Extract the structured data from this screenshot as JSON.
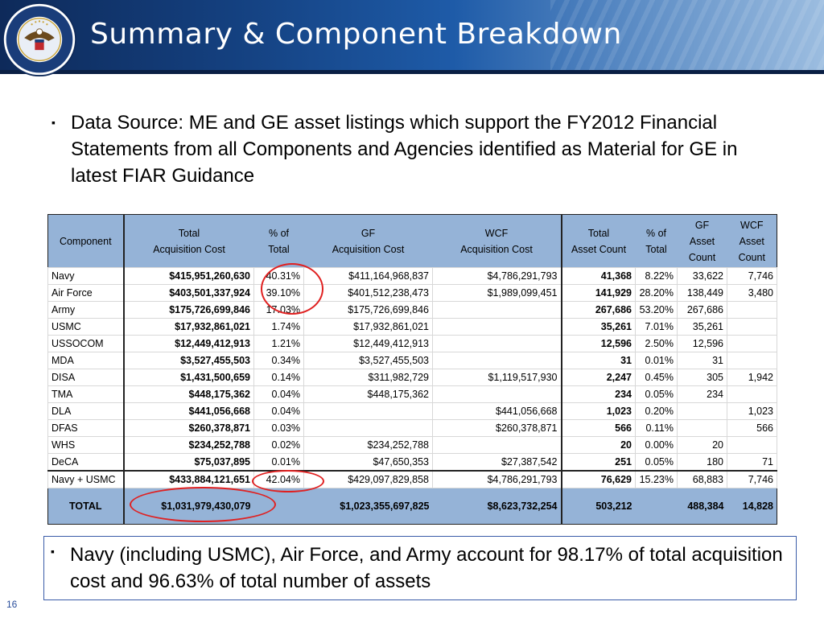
{
  "header": {
    "title": "Summary & Component Breakdown",
    "seal_text": "DEPARTMENT OF DEFENSE · UNITED STATES OF AMERICA"
  },
  "bullets": {
    "mark": "▪",
    "main": "Data Source:  ME and GE asset listings which support the FY2012 Financial Statements from all Components and Agencies identified as Material for GE in latest FIAR Guidance",
    "note": "Navy (including USMC), Air Force, and Army account for 98.17% of total acquisition cost and 96.63% of total number of assets"
  },
  "table": {
    "headers": [
      [
        "Component"
      ],
      [
        "Total",
        "Acquisition Cost"
      ],
      [
        "% of",
        "Total"
      ],
      [
        "GF",
        "Acquisition Cost"
      ],
      [
        "WCF",
        "Acquisition Cost"
      ],
      [
        "Total",
        "Asset Count"
      ],
      [
        "% of",
        "Total"
      ],
      [
        "GF",
        "Asset",
        "Count"
      ],
      [
        "WCF",
        "Asset",
        "Count"
      ]
    ],
    "rows": [
      [
        "Navy",
        "$415,951,260,630",
        "40.31%",
        "$411,164,968,837",
        "$4,786,291,793",
        "41,368",
        "8.22%",
        "33,622",
        "7,746"
      ],
      [
        "Air Force",
        "$403,501,337,924",
        "39.10%",
        "$401,512,238,473",
        "$1,989,099,451",
        "141,929",
        "28.20%",
        "138,449",
        "3,480"
      ],
      [
        "Army",
        "$175,726,699,846",
        "17.03%",
        "$175,726,699,846",
        "",
        "267,686",
        "53.20%",
        "267,686",
        ""
      ],
      [
        "USMC",
        "$17,932,861,021",
        "1.74%",
        "$17,932,861,021",
        "",
        "35,261",
        "7.01%",
        "35,261",
        ""
      ],
      [
        "USSOCOM",
        "$12,449,412,913",
        "1.21%",
        "$12,449,412,913",
        "",
        "12,596",
        "2.50%",
        "12,596",
        ""
      ],
      [
        "MDA",
        "$3,527,455,503",
        "0.34%",
        "$3,527,455,503",
        "",
        "31",
        "0.01%",
        "31",
        ""
      ],
      [
        "DISA",
        "$1,431,500,659",
        "0.14%",
        "$311,982,729",
        "$1,119,517,930",
        "2,247",
        "0.45%",
        "305",
        "1,942"
      ],
      [
        "TMA",
        "$448,175,362",
        "0.04%",
        "$448,175,362",
        "",
        "234",
        "0.05%",
        "234",
        ""
      ],
      [
        "DLA",
        "$441,056,668",
        "0.04%",
        "",
        "$441,056,668",
        "1,023",
        "0.20%",
        "",
        "1,023"
      ],
      [
        "DFAS",
        "$260,378,871",
        "0.03%",
        "",
        "$260,378,871",
        "566",
        "0.11%",
        "",
        "566"
      ],
      [
        "WHS",
        "$234,252,788",
        "0.02%",
        "$234,252,788",
        "",
        "20",
        "0.00%",
        "20",
        ""
      ],
      [
        "DeCA",
        "$75,037,895",
        "0.01%",
        "$47,650,353",
        "$27,387,542",
        "251",
        "0.05%",
        "180",
        "71"
      ]
    ],
    "subtotal": [
      "Navy + USMC",
      "$433,884,121,651",
      "42.04%",
      "$429,097,829,858",
      "$4,786,291,793",
      "76,629",
      "15.23%",
      "68,883",
      "7,746"
    ],
    "total": [
      "TOTAL",
      "$1,031,979,430,079",
      "",
      "$1,023,355,697,825",
      "$8,623,732,254",
      "503,212",
      "",
      "488,384",
      "14,828"
    ]
  },
  "footer": {
    "page_number": "16"
  },
  "colors": {
    "header_fill": "#95b3d7",
    "circle": "#e02020",
    "banner": "#14407f"
  }
}
